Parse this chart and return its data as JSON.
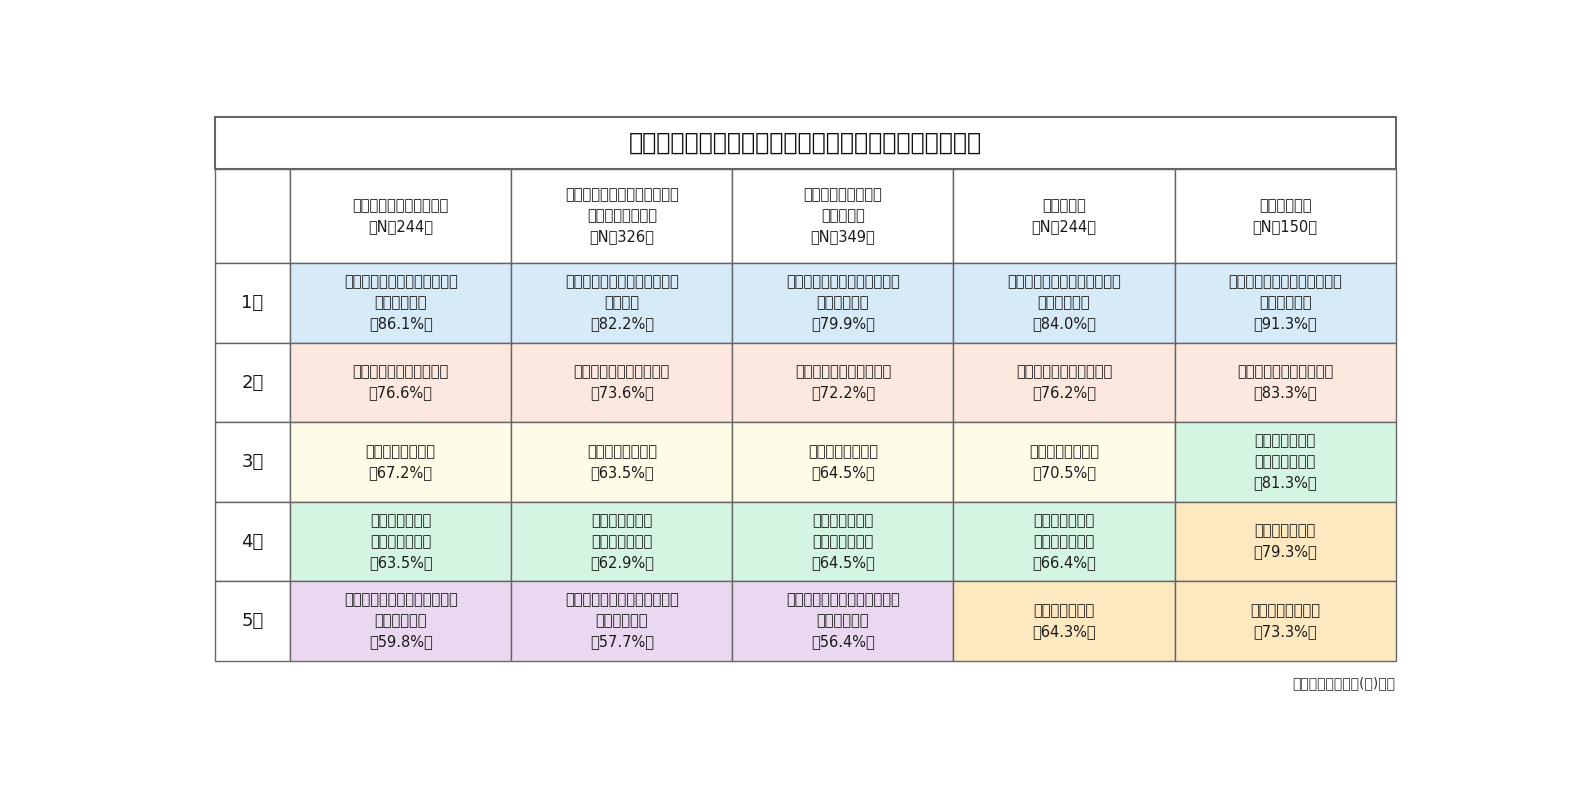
{
  "title": "業務・作業別　従業員が実施している腰痛対策の実施率",
  "footer": "日本シグマックス(株)調べ",
  "columns": [
    "同じ動作を繰り返す作業\n（N＝244）",
    "身体に負担のかかる姿勢、無\n理な姿勢での作業\n（N＝326）",
    "重量物の持ち運び、\n積み下ろし\n（N＝349）",
    "ライン作業\n（N＝244）",
    "デスクワーク\n（N＝150）"
  ],
  "row_labels": [
    "1位",
    "2位",
    "3位",
    "4位",
    "5位"
  ],
  "cells": [
    [
      "市販のシップ薬・テープ剤・\n塗り薬の使用\n（86.1%）",
      "市販のシップ薬・テープ剤・\n塗り薬の\n（82.2%）",
      "市販のシップ薬・テープ剤・\n塗り薬の使用\n（79.9%）",
      "市販のシップ薬・テープ剤・\n塗り薬の使用\n（84.0%）",
      "市販のシップ薬・テープ剤・\n塗り薬の使用\n（91.3%）"
    ],
    [
      "運動やストレッチの実施\n（76.6%）",
      "運動やストレッチの実施\n（73.6%）",
      "運動やストレッチの実施\n（72.2%）",
      "運動やストレッチの実施\n（76.2%）",
      "運動やストレッチの実施\n（83.3%）"
    ],
    [
      "サポーターの装着\n（67.2%）",
      "サポーターの装着\n（63.5%）",
      "サポーターの装着\n（64.5%）",
      "サポーターの装着\n（70.5%）",
      "整形外科などの\n医療機関の受診\n（81.3%）"
    ],
    [
      "整形外科などの\n医療機関の受診\n（63.5%）",
      "整形外科などの\n医療機関の受診\n（62.9%）",
      "整形外科などの\n医療機関の受診\n（64.5%）",
      "整形外科などの\n医療機関の受診\n（66.4%）",
      "入浴時間の調整\n（79.3%）"
    ],
    [
      "それまでよりも安静にする・\n活動量の抑制\n（59.8%）",
      "それまでよりも安静にする・\n活動量の抑制\n（57.7%）",
      "それまでよりも安静にする・\n活動量の抑制\n（56.4%）",
      "入浴時間の調整\n（64.3%）",
      "サポーターの装着\n（73.3%）"
    ]
  ],
  "cell_colors": [
    [
      "#d6eaf8",
      "#d6eaf8",
      "#d6eaf8",
      "#d6eaf8",
      "#d6eaf8"
    ],
    [
      "#fde8e0",
      "#fde8e0",
      "#fde8e0",
      "#fde8e0",
      "#fde8e0"
    ],
    [
      "#fefbe7",
      "#fefbe7",
      "#fefbe7",
      "#fefbe7",
      "#d5f5e3"
    ],
    [
      "#d5f5e3",
      "#d5f5e3",
      "#d5f5e3",
      "#d5f5e3",
      "#fde8c0"
    ],
    [
      "#ead8f0",
      "#ead8f0",
      "#ead8f0",
      "#fde8c0",
      "#fde8c0"
    ]
  ],
  "bg_color": "#ffffff",
  "border_color": "#666666",
  "title_fontsize": 17,
  "cell_fontsize": 10.5,
  "header_fontsize": 10.5,
  "row_label_fontsize": 13
}
